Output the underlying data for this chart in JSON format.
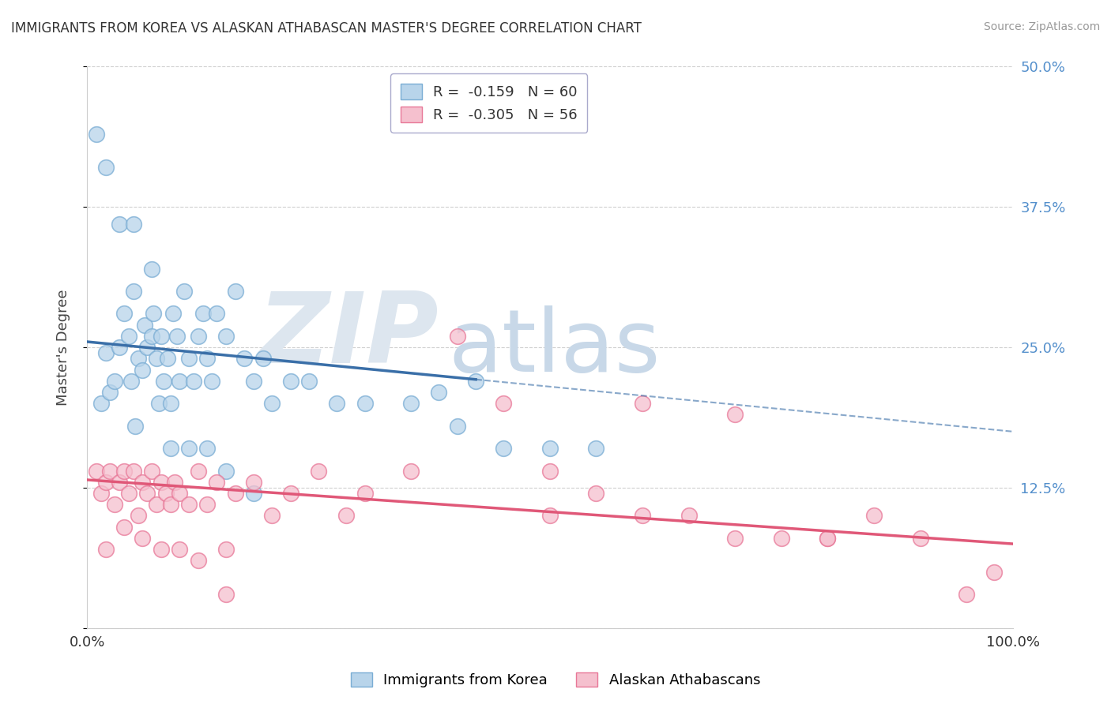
{
  "title": "IMMIGRANTS FROM KOREA VS ALASKAN ATHABASCAN MASTER'S DEGREE CORRELATION CHART",
  "source": "Source: ZipAtlas.com",
  "ylabel": "Master's Degree",
  "xlim": [
    0,
    100
  ],
  "ylim": [
    0,
    50
  ],
  "yticks": [
    0,
    12.5,
    25.0,
    37.5,
    50.0
  ],
  "blue_label": "Immigrants from Korea",
  "pink_label": "Alaskan Athabascans",
  "blue_R": -0.159,
  "blue_N": 60,
  "pink_R": -0.305,
  "pink_N": 56,
  "blue_color": "#b8d4ea",
  "blue_edge_color": "#7aadd4",
  "blue_line_color": "#3a6fa8",
  "pink_color": "#f5c0ce",
  "pink_edge_color": "#e87898",
  "pink_line_color": "#e05878",
  "watermark_zip_color": "#dde6ef",
  "watermark_atlas_color": "#c8d8e8",
  "background_color": "#ffffff",
  "grid_color": "#d0d0d0",
  "right_tick_color": "#5590cc",
  "blue_solid_end": 42,
  "blue_line_start_y": 25.5,
  "blue_line_end_y": 17.5,
  "pink_line_start_y": 13.2,
  "pink_line_end_y": 7.5,
  "blue_x": [
    1.5,
    2.0,
    2.5,
    3.0,
    3.5,
    4.0,
    4.5,
    4.8,
    5.0,
    5.2,
    5.5,
    6.0,
    6.2,
    6.5,
    7.0,
    7.2,
    7.5,
    7.8,
    8.0,
    8.3,
    8.7,
    9.0,
    9.3,
    9.7,
    10.0,
    10.5,
    11.0,
    11.5,
    12.0,
    12.5,
    13.0,
    13.5,
    14.0,
    15.0,
    16.0,
    17.0,
    18.0,
    19.0,
    20.0,
    22.0,
    24.0,
    27.0,
    30.0,
    35.0,
    38.0,
    40.0,
    42.0,
    45.0,
    50.0,
    55.0,
    1.0,
    2.0,
    3.5,
    5.0,
    7.0,
    9.0,
    11.0,
    13.0,
    15.0,
    18.0
  ],
  "blue_y": [
    20.0,
    24.5,
    21.0,
    22.0,
    25.0,
    28.0,
    26.0,
    22.0,
    30.0,
    18.0,
    24.0,
    23.0,
    27.0,
    25.0,
    26.0,
    28.0,
    24.0,
    20.0,
    26.0,
    22.0,
    24.0,
    20.0,
    28.0,
    26.0,
    22.0,
    30.0,
    24.0,
    22.0,
    26.0,
    28.0,
    24.0,
    22.0,
    28.0,
    26.0,
    30.0,
    24.0,
    22.0,
    24.0,
    20.0,
    22.0,
    22.0,
    20.0,
    20.0,
    20.0,
    21.0,
    18.0,
    22.0,
    16.0,
    16.0,
    16.0,
    44.0,
    41.0,
    36.0,
    36.0,
    32.0,
    16.0,
    16.0,
    16.0,
    14.0,
    12.0
  ],
  "pink_x": [
    1.0,
    1.5,
    2.0,
    2.5,
    3.0,
    3.5,
    4.0,
    4.5,
    5.0,
    5.5,
    6.0,
    6.5,
    7.0,
    7.5,
    8.0,
    8.5,
    9.0,
    9.5,
    10.0,
    11.0,
    12.0,
    13.0,
    14.0,
    15.0,
    16.0,
    18.0,
    20.0,
    22.0,
    25.0,
    28.0,
    30.0,
    35.0,
    40.0,
    45.0,
    50.0,
    55.0,
    60.0,
    65.0,
    70.0,
    75.0,
    80.0,
    85.0,
    90.0,
    95.0,
    98.0,
    50.0,
    60.0,
    70.0,
    80.0,
    2.0,
    4.0,
    6.0,
    8.0,
    10.0,
    12.0,
    15.0
  ],
  "pink_y": [
    14.0,
    12.0,
    13.0,
    14.0,
    11.0,
    13.0,
    14.0,
    12.0,
    14.0,
    10.0,
    13.0,
    12.0,
    14.0,
    11.0,
    13.0,
    12.0,
    11.0,
    13.0,
    12.0,
    11.0,
    14.0,
    11.0,
    13.0,
    7.0,
    12.0,
    13.0,
    10.0,
    12.0,
    14.0,
    10.0,
    12.0,
    14.0,
    26.0,
    20.0,
    14.0,
    12.0,
    20.0,
    10.0,
    19.0,
    8.0,
    8.0,
    10.0,
    8.0,
    3.0,
    5.0,
    10.0,
    10.0,
    8.0,
    8.0,
    7.0,
    9.0,
    8.0,
    7.0,
    7.0,
    6.0,
    3.0
  ]
}
